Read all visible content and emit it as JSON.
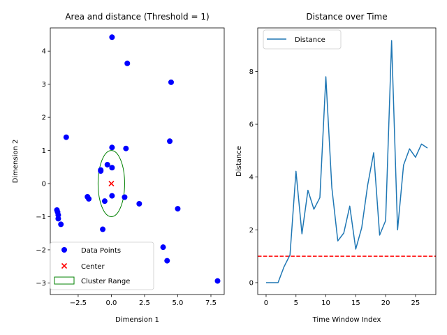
{
  "colors": {
    "points": "#0000ff",
    "center": "#ff0000",
    "cluster_range": "#008000",
    "distance_line": "#1f77b4",
    "threshold_line": "#ff0000"
  },
  "chart_data": [
    {
      "type": "scatter",
      "title": "Area and distance (Threshold = 1)",
      "xlabel": "Dimension 1",
      "ylabel": "Dimension 2",
      "xlim": [
        -4.6,
        8.5
      ],
      "ylim": [
        -3.35,
        4.7
      ],
      "xticks": [
        -2.5,
        0.0,
        2.5,
        5.0,
        7.5
      ],
      "xtick_labels": [
        "−2.5",
        "0.0",
        "2.5",
        "5.0",
        "7.5"
      ],
      "yticks": [
        -3,
        -2,
        -1,
        0,
        1,
        2,
        3,
        4
      ],
      "ytick_labels": [
        "−3",
        "−2",
        "−1",
        "0",
        "1",
        "2",
        "3",
        "4"
      ],
      "legend": {
        "placement": "lower-left",
        "entries": [
          "Data Points",
          "Center",
          "Cluster Range"
        ]
      },
      "series": [
        {
          "name": "Data Points",
          "marker": "circle",
          "points": [
            [
              0.05,
              4.42
            ],
            [
              1.2,
              3.63
            ],
            [
              4.5,
              3.06
            ],
            [
              -3.4,
              1.4
            ],
            [
              0.05,
              1.09
            ],
            [
              1.1,
              1.06
            ],
            [
              4.4,
              1.28
            ],
            [
              -0.3,
              0.57
            ],
            [
              0.05,
              0.48
            ],
            [
              -0.8,
              0.38
            ],
            [
              -0.8,
              0.41
            ],
            [
              -1.8,
              -0.4
            ],
            [
              -1.7,
              -0.46
            ],
            [
              0.05,
              -0.37
            ],
            [
              1.0,
              -0.41
            ],
            [
              -0.5,
              -0.53
            ],
            [
              2.1,
              -0.61
            ],
            [
              5.0,
              -0.76
            ],
            [
              -4.1,
              -0.8
            ],
            [
              -4.05,
              -0.86
            ],
            [
              -4.0,
              -0.95
            ],
            [
              -4.0,
              -1.06
            ],
            [
              -3.8,
              -1.23
            ],
            [
              -0.65,
              -1.38
            ],
            [
              3.9,
              -1.92
            ],
            [
              4.2,
              -2.33
            ],
            [
              8.0,
              -2.94
            ]
          ]
        },
        {
          "name": "Center",
          "marker": "x",
          "points": [
            [
              0.0,
              0.0
            ]
          ]
        }
      ],
      "cluster_range": {
        "name": "Cluster Range",
        "center": [
          0.0,
          0.0
        ],
        "radius_x": 1.0,
        "radius_y": 1.0
      }
    },
    {
      "type": "line",
      "title": "Distance over Time",
      "xlabel": "Time Window Index",
      "ylabel": "Distance",
      "xlim": [
        -1.4,
        28.4
      ],
      "ylim": [
        -0.45,
        9.65
      ],
      "xticks": [
        0,
        5,
        10,
        15,
        20,
        25
      ],
      "xtick_labels": [
        "0",
        "5",
        "10",
        "15",
        "20",
        "25"
      ],
      "yticks": [
        0,
        2,
        4,
        6,
        8
      ],
      "ytick_labels": [
        "0",
        "2",
        "4",
        "6",
        "8"
      ],
      "legend": {
        "placement": "top-left",
        "entries": [
          "Distance"
        ]
      },
      "series": [
        {
          "name": "Distance",
          "x": [
            0,
            1,
            2,
            3,
            4,
            5,
            6,
            7,
            8,
            9,
            10,
            11,
            12,
            13,
            14,
            15,
            16,
            17,
            18,
            19,
            20,
            21,
            22,
            23,
            24,
            25,
            26,
            27
          ],
          "values": [
            0.0,
            0.0,
            0.0,
            0.6,
            1.05,
            4.22,
            1.85,
            3.5,
            2.78,
            3.22,
            7.8,
            3.6,
            1.58,
            1.88,
            2.9,
            1.27,
            2.08,
            3.7,
            4.92,
            1.8,
            2.35,
            9.17,
            2.0,
            4.45,
            5.07,
            4.75,
            5.25,
            5.1
          ]
        }
      ],
      "threshold": 1
    }
  ]
}
